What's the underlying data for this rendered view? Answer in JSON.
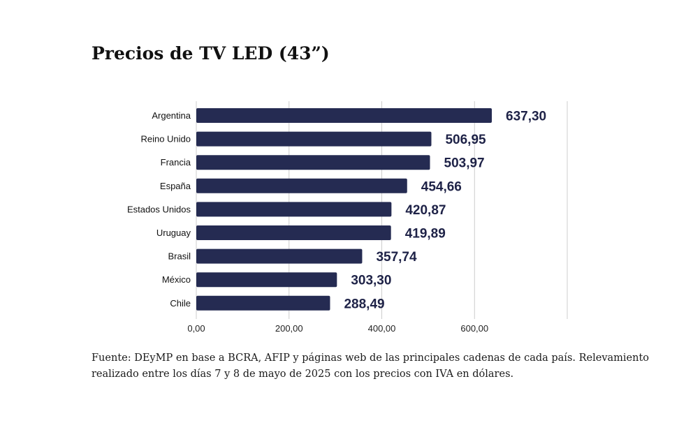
{
  "title": "Precios de TV LED (43”)",
  "footnote": {
    "line1": "Fuente: DEyMP en base a BCRA, AFIP y páginas web de las principales cadenas de cada país. Relevamiento",
    "line2": "realizado entre los días 7 y 8 de mayo de 2025 con los precios con IVA en dólares."
  },
  "colors": {
    "bar": "#252b52",
    "value_label": "#1e2247",
    "grid": "#cccccc"
  },
  "chart_data": {
    "type": "bar",
    "orientation": "horizontal",
    "title": "Precios de TV LED (43”)",
    "xlabel": "",
    "ylabel": "",
    "categories": [
      "Argentina",
      "Reino Unido",
      "Francia",
      "España",
      "Estados Unidos",
      "Uruguay",
      "Brasil",
      "México",
      "Chile"
    ],
    "values": [
      637.3,
      506.95,
      503.97,
      454.66,
      420.87,
      419.89,
      357.74,
      303.3,
      288.49
    ],
    "value_labels": [
      "637,30",
      "506,95",
      "503,97",
      "454,66",
      "420,87",
      "419,89",
      "357,74",
      "303,30",
      "288,49"
    ],
    "xlim": [
      0,
      800
    ],
    "x_ticks": [
      0,
      200,
      400,
      600
    ],
    "x_tick_labels": [
      "0,00",
      "200,00",
      "400,00",
      "600,00"
    ],
    "grid": true,
    "legend": "none"
  }
}
